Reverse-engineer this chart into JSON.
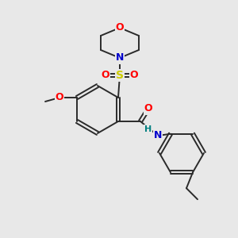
{
  "bg_color": "#e8e8e8",
  "bond_color": "#2a2a2a",
  "atom_colors": {
    "O": "#ff0000",
    "N": "#0000cc",
    "S": "#cccc00",
    "H": "#008080",
    "C": "#2a2a2a"
  },
  "fig_size": [
    3.0,
    3.0
  ],
  "dpi": 100
}
